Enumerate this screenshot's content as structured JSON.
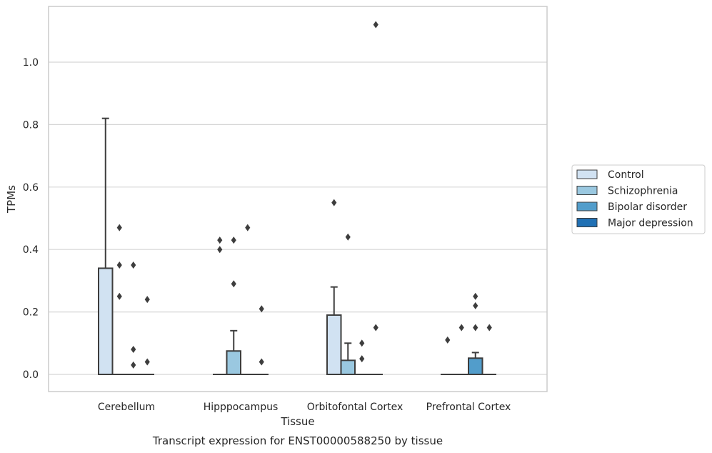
{
  "caption": "Transcript expression for ENST00000588250 by tissue",
  "chart_data": {
    "type": "box",
    "xlabel": "Tissue",
    "ylabel": "TPMs",
    "ylim": [
      -0.055,
      1.18
    ],
    "yticks": [
      "0.0",
      "0.2",
      "0.4",
      "0.6",
      "0.8",
      "1.0"
    ],
    "grid": "horizontal",
    "legend_position": "right",
    "categories": [
      "Cerebellum",
      "Hipppocampus",
      "Orbitofontal Cortex",
      "Prefrontal Cortex"
    ],
    "series": [
      {
        "name": "Control",
        "color": "#d1e2f2"
      },
      {
        "name": "Schizophrenia",
        "color": "#9ac8e0"
      },
      {
        "name": "Bipolar disorder",
        "color": "#529dcb"
      },
      {
        "name": "Major depression",
        "color": "#2070b4"
      }
    ],
    "boxes": [
      [
        {
          "min": 0,
          "q1": 0,
          "median": 0,
          "q3": 0.34,
          "max": 0.82,
          "outliers": []
        },
        {
          "min": 0,
          "q1": 0,
          "median": 0,
          "q3": 0,
          "max": 0,
          "outliers": [
            0.47,
            0.35,
            0.25
          ]
        },
        {
          "min": 0,
          "q1": 0,
          "median": 0,
          "q3": 0,
          "max": 0,
          "outliers": [
            0.35,
            0.08,
            0.03
          ]
        },
        {
          "min": 0,
          "q1": 0,
          "median": 0,
          "q3": 0,
          "max": 0,
          "outliers": [
            0.24,
            0.04
          ]
        }
      ],
      [
        {
          "min": 0,
          "q1": 0,
          "median": 0,
          "q3": 0,
          "max": 0,
          "outliers": [
            0.43,
            0.4
          ]
        },
        {
          "min": 0,
          "q1": 0,
          "median": 0,
          "q3": 0.075,
          "max": 0.14,
          "outliers": [
            0.43,
            0.29
          ]
        },
        {
          "min": 0,
          "q1": 0,
          "median": 0,
          "q3": 0,
          "max": 0,
          "outliers": [
            0.47
          ]
        },
        {
          "min": 0,
          "q1": 0,
          "median": 0,
          "q3": 0,
          "max": 0,
          "outliers": [
            0.21,
            0.04
          ]
        }
      ],
      [
        {
          "min": 0,
          "q1": 0,
          "median": 0,
          "q3": 0.19,
          "max": 0.28,
          "outliers": [
            0.55
          ]
        },
        {
          "min": 0,
          "q1": 0,
          "median": 0,
          "q3": 0.045,
          "max": 0.1,
          "outliers": [
            0.44
          ]
        },
        {
          "min": 0,
          "q1": 0,
          "median": 0,
          "q3": 0,
          "max": 0,
          "outliers": [
            0.1,
            0.05
          ]
        },
        {
          "min": 0,
          "q1": 0,
          "median": 0,
          "q3": 0,
          "max": 0,
          "outliers": [
            1.12,
            0.15
          ]
        }
      ],
      [
        {
          "min": 0,
          "q1": 0,
          "median": 0,
          "q3": 0,
          "max": 0,
          "outliers": [
            0.11
          ]
        },
        {
          "min": 0,
          "q1": 0,
          "median": 0,
          "q3": 0,
          "max": 0,
          "outliers": [
            0.15
          ]
        },
        {
          "min": 0,
          "q1": 0,
          "median": 0,
          "q3": 0.052,
          "max": 0.07,
          "outliers": [
            0.25,
            0.22,
            0.15
          ]
        },
        {
          "min": 0,
          "q1": 0,
          "median": 0,
          "q3": 0,
          "max": 0,
          "outliers": [
            0.15
          ]
        }
      ]
    ]
  }
}
